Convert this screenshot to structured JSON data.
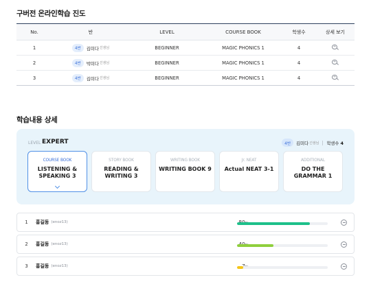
{
  "progress_section": {
    "title": "구버전 온라인학습 진도",
    "columns": {
      "no": "No.",
      "ban": "반",
      "level": "LEVEL",
      "course_book": "COURSE BOOK",
      "students": "학생수",
      "detail": "상세 보기"
    },
    "rows": [
      {
        "no": "1",
        "class_badge": "4반",
        "teacher": "김미다",
        "teacher_suffix": "선생님",
        "level": "BEGINNER",
        "course_book": "MAGIC PHONICS 1",
        "students": "4",
        "detail_icon": "zoom-in-icon"
      },
      {
        "no": "2",
        "class_badge": "4반",
        "teacher": "박미다",
        "teacher_suffix": "선생님",
        "level": "BEGINNER",
        "course_book": "MAGIC PHONICS 1",
        "students": "4",
        "detail_icon": "zoom-in-icon"
      },
      {
        "no": "3",
        "class_badge": "4반",
        "teacher": "김미다",
        "teacher_suffix": "선생님",
        "level": "BEGINNER",
        "course_book": "MAGIC PHONICS 1",
        "students": "4",
        "detail_icon": "zoom-in-icon"
      }
    ]
  },
  "detail_section": {
    "title": "학습내용 상세",
    "level_label": "LEVEL",
    "level_value": "EXPERT",
    "class_badge": "4반",
    "teacher": "김미다",
    "teacher_suffix": "선생님",
    "student_count_label": "학생수",
    "student_count": "4",
    "books": [
      {
        "category": "COURSE BOOK",
        "title": "LISTENING & SPEAKING 3",
        "active": true
      },
      {
        "category": "STORY BOOK",
        "title": "READING & WRITING 3",
        "active": false
      },
      {
        "category": "WRITING BOOK",
        "title": "WRITING BOOK 9",
        "active": false
      },
      {
        "category": "Jr. NEAT",
        "title": "Actual NEAT 3-1",
        "active": false
      },
      {
        "category": "ADDITIONAL",
        "title": "DO THE GRAMMAR 1",
        "active": false
      }
    ],
    "students": [
      {
        "no": "1",
        "name": "홍길동",
        "id": "(enoz13)",
        "percent": 80,
        "percent_unit": "%",
        "color": "#1dc08a"
      },
      {
        "no": "2",
        "name": "홍길동",
        "id": "(enoz13)",
        "percent": 40,
        "percent_unit": "%",
        "color": "#8fcf3c"
      },
      {
        "no": "3",
        "name": "홍길동",
        "id": "(enoz13)",
        "percent": 7,
        "percent_unit": "%",
        "color": "#f5c518"
      }
    ]
  },
  "colors": {
    "accent": "#3a6fd8",
    "panel_bg": "#e8f4fb",
    "table_top_border": "#2c3e5c"
  }
}
